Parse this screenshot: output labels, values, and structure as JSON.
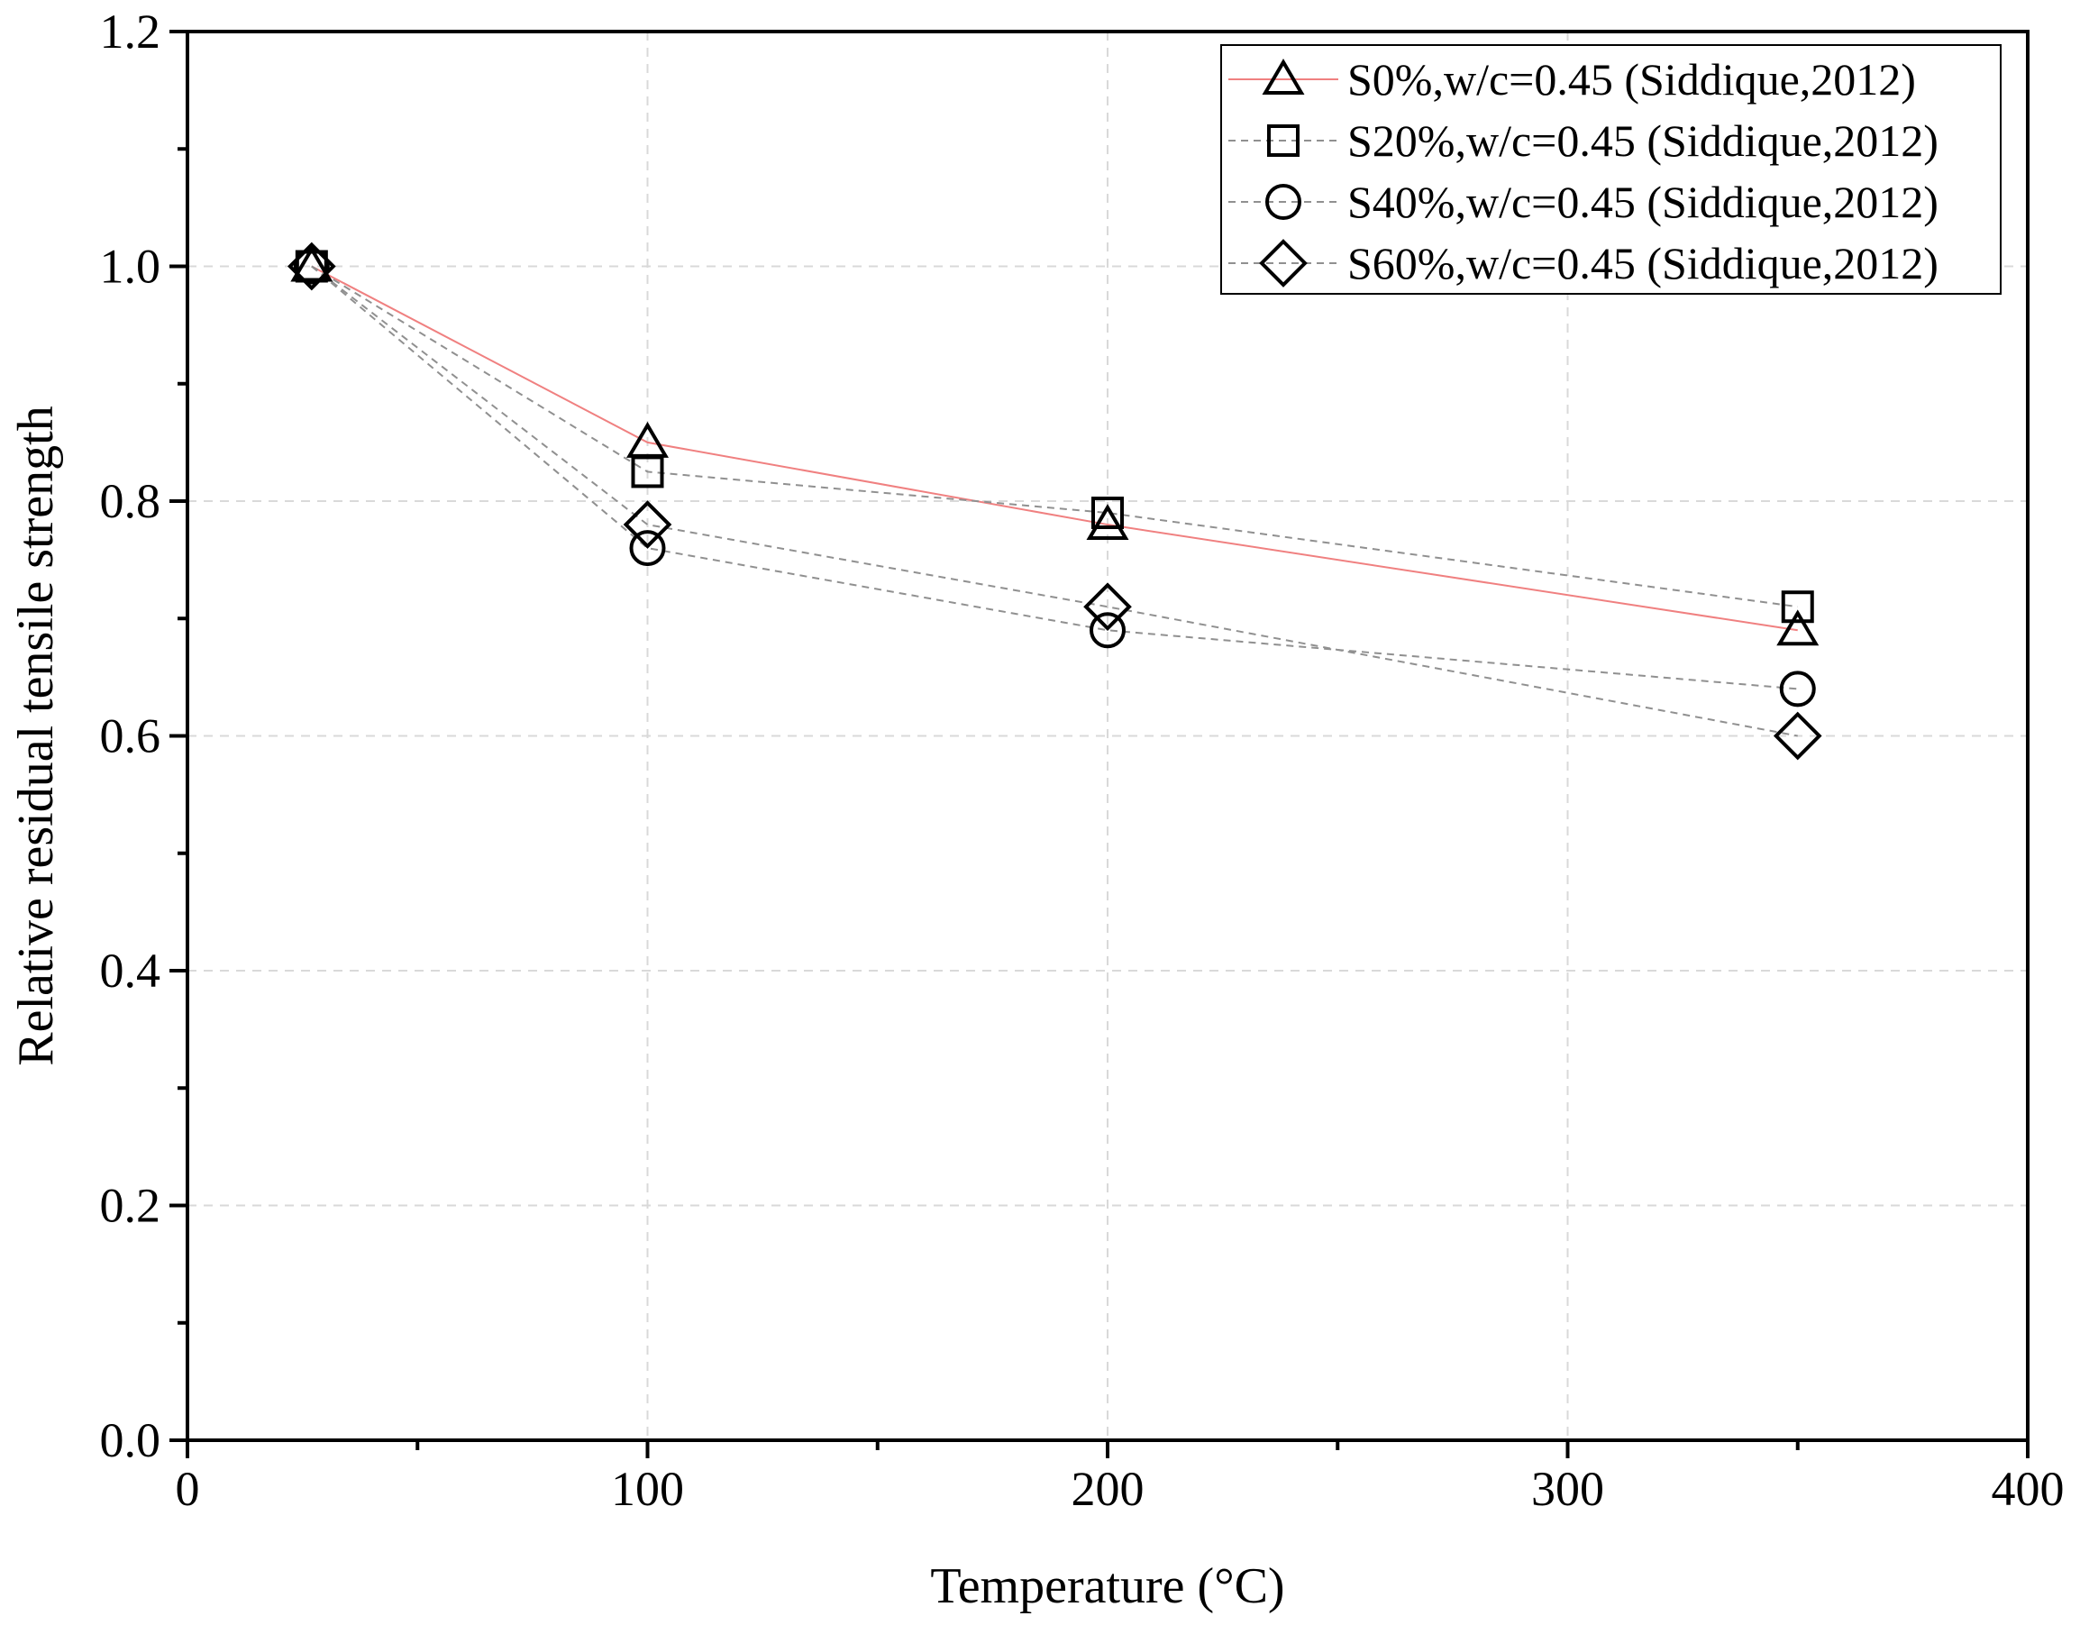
{
  "chart_data": {
    "type": "scatter",
    "title": "",
    "xlabel": "Temperature (°C)",
    "ylabel": "Relative residual tensile strength",
    "xlim": [
      0,
      400
    ],
    "ylim": [
      0.0,
      1.2
    ],
    "x_ticks": [
      0,
      100,
      200,
      300,
      400
    ],
    "x_tick_labels": [
      "0",
      "100",
      "200",
      "300",
      "400"
    ],
    "y_ticks": [
      0.0,
      0.2,
      0.4,
      0.6,
      0.8,
      1.0,
      1.2
    ],
    "y_tick_labels": [
      "0.0",
      "0.2",
      "0.4",
      "0.6",
      "0.8",
      "1.0",
      "1.2"
    ],
    "grid": true,
    "legend_position": "top-right",
    "series": [
      {
        "name": "S0%,w/c=0.45 (Siddique,2012)",
        "marker": "triangle",
        "line_style": "solid",
        "line_color": "#f08080",
        "x": [
          27,
          100,
          200,
          350
        ],
        "y": [
          1.0,
          0.85,
          0.78,
          0.69
        ]
      },
      {
        "name": "S20%,w/c=0.45 (Siddique,2012)",
        "marker": "square",
        "line_style": "dashed",
        "line_color": "#909090",
        "x": [
          27,
          100,
          200,
          350
        ],
        "y": [
          1.0,
          0.825,
          0.79,
          0.71
        ]
      },
      {
        "name": "S40%,w/c=0.45 (Siddique,2012)",
        "marker": "circle",
        "line_style": "dashed",
        "line_color": "#909090",
        "x": [
          27,
          100,
          200,
          350
        ],
        "y": [
          1.0,
          0.76,
          0.69,
          0.64
        ]
      },
      {
        "name": "S60%,w/c=0.45 (Siddique,2012)",
        "marker": "diamond",
        "line_style": "dashed",
        "line_color": "#909090",
        "x": [
          27,
          100,
          200,
          350
        ],
        "y": [
          1.0,
          0.78,
          0.71,
          0.6
        ]
      }
    ]
  }
}
